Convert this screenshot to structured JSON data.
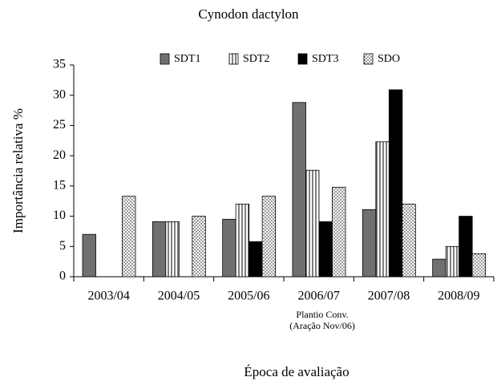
{
  "chart_data": {
    "type": "bar",
    "title": "Cynodon dactylon",
    "xlabel": "Época de avaliação",
    "ylabel": "Importância relativa %",
    "categories": [
      "2003/04",
      "2004/05",
      "2005/06",
      "2006/07",
      "2007/08",
      "2008/09"
    ],
    "series": [
      {
        "name": "SDT1",
        "color": "#707070",
        "pattern": "solid",
        "values": [
          7.0,
          9.1,
          9.5,
          28.8,
          11.1,
          2.9
        ]
      },
      {
        "name": "SDT2",
        "color": "#000000",
        "pattern": "vertical-stripes",
        "values": [
          0,
          9.1,
          12,
          17.6,
          22.3,
          5
        ]
      },
      {
        "name": "SDT3",
        "color": "#000000",
        "pattern": "solid",
        "values": [
          0,
          0,
          5.8,
          9.1,
          30.9,
          10
        ]
      },
      {
        "name": "SDO",
        "color": "#000000",
        "pattern": "dots",
        "values": [
          13.3,
          10,
          13.3,
          14.8,
          12,
          3.8
        ]
      }
    ],
    "annotations": [
      "Plantio Conv.",
      "(Aração Nov/06)"
    ],
    "ylim": [
      0,
      35
    ],
    "yticks": [
      0,
      5,
      10,
      15,
      20,
      25,
      30,
      35
    ],
    "legend": "top"
  }
}
